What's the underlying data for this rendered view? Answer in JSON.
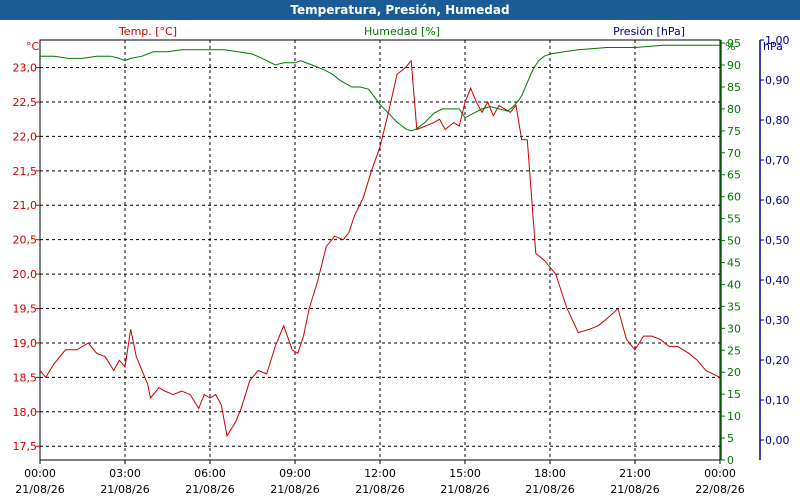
{
  "window": {
    "title": "Temperatura, Presión, Humedad"
  },
  "colors": {
    "temp": "#cc0000",
    "humidity": "#007700",
    "pressure": "#00008b",
    "titlebar": "#1c5c96",
    "text": "#000000"
  },
  "chart_data": {
    "type": "line",
    "title": "Temperatura, Presión, Humedad",
    "grid": true,
    "x_axis": {
      "ticks": [
        {
          "time": "00:00",
          "date": "21/08/26"
        },
        {
          "time": "03:00",
          "date": "21/08/26"
        },
        {
          "time": "06:00",
          "date": "21/08/26"
        },
        {
          "time": "09:00",
          "date": "21/08/26"
        },
        {
          "time": "12:00",
          "date": "21/08/26"
        },
        {
          "time": "15:00",
          "date": "21/08/26"
        },
        {
          "time": "18:00",
          "date": "21/08/26"
        },
        {
          "time": "21:00",
          "date": "21/08/26"
        },
        {
          "time": "00:00",
          "date": "22/08/26"
        }
      ],
      "range_hours": [
        0,
        24
      ]
    },
    "left_axis": {
      "unit": "°C",
      "range": [
        17.3,
        23.4
      ],
      "ticks": [
        "17,5",
        "18,0",
        "18,5",
        "19,0",
        "19,5",
        "20,0",
        "20,5",
        "21,0",
        "21,5",
        "22,0",
        "22,5",
        "23,0"
      ]
    },
    "right_axis_humidity": {
      "unit": "%",
      "range": [
        0,
        95.7
      ],
      "ticks": [
        "0",
        "5",
        "10",
        "15",
        "20",
        "25",
        "30",
        "35",
        "40",
        "45",
        "50",
        "55",
        "60",
        "65",
        "70",
        "75",
        "80",
        "85",
        "90",
        "95"
      ]
    },
    "right_axis_pressure": {
      "unit": "hPa",
      "range": [
        -0.05,
        1.0
      ],
      "ticks": [
        "0,00",
        "0,10",
        "0,20",
        "0,30",
        "0,40",
        "0,50",
        "0,60",
        "0,70",
        "0,80",
        "0,90",
        "1,00"
      ]
    },
    "series": [
      {
        "name": "Temp. [°C]",
        "axis": "temp",
        "x": [
          0,
          0.2,
          0.5,
          0.9,
          1.3,
          1.7,
          2.0,
          2.3,
          2.6,
          2.8,
          3.0,
          3.2,
          3.4,
          3.6,
          3.8,
          3.9,
          4.2,
          4.4,
          4.7,
          5.0,
          5.3,
          5.6,
          5.8,
          6.0,
          6.2,
          6.4,
          6.6,
          6.9,
          7.1,
          7.4,
          7.7,
          8.0,
          8.3,
          8.6,
          8.9,
          9.1,
          9.3,
          9.5,
          9.8,
          10.1,
          10.4,
          10.7,
          10.9,
          11.1,
          11.4,
          11.7,
          12.0,
          12.3,
          12.6,
          12.9,
          13.1,
          13.3,
          13.6,
          13.9,
          14.1,
          14.3,
          14.6,
          14.8,
          15.0,
          15.2,
          15.4,
          15.6,
          15.8,
          16.0,
          16.2,
          16.4,
          16.6,
          16.8,
          17.0,
          17.2,
          17.5,
          17.8,
          18.2,
          18.6,
          19.0,
          19.4,
          19.7,
          20.0,
          20.4,
          20.7,
          21.0,
          21.3,
          21.6,
          21.9,
          22.2,
          22.5,
          22.9,
          23.2,
          23.5,
          24.0
        ],
        "y": [
          18.6,
          18.5,
          18.7,
          18.9,
          18.9,
          19.0,
          18.85,
          18.8,
          18.6,
          18.75,
          18.65,
          19.2,
          18.8,
          18.6,
          18.4,
          18.2,
          18.35,
          18.3,
          18.25,
          18.3,
          18.25,
          18.05,
          18.25,
          18.2,
          18.25,
          18.1,
          17.65,
          17.85,
          18.05,
          18.45,
          18.6,
          18.55,
          18.95,
          19.25,
          18.9,
          18.85,
          19.1,
          19.5,
          19.9,
          20.4,
          20.55,
          20.5,
          20.6,
          20.85,
          21.1,
          21.5,
          21.85,
          22.35,
          22.9,
          23.0,
          23.1,
          22.1,
          22.15,
          22.2,
          22.25,
          22.1,
          22.2,
          22.15,
          22.5,
          22.7,
          22.5,
          22.35,
          22.5,
          22.3,
          22.45,
          22.4,
          22.35,
          22.45,
          21.95,
          21.95,
          20.3,
          20.2,
          20.0,
          19.5,
          19.15,
          19.2,
          19.25,
          19.35,
          19.5,
          19.05,
          18.9,
          19.1,
          19.1,
          19.05,
          18.95,
          18.95,
          18.85,
          18.75,
          18.6,
          18.5
        ]
      },
      {
        "name": "Humedad [%]",
        "axis": "humidity",
        "x": [
          0,
          0.5,
          1.0,
          1.5,
          2.0,
          2.5,
          2.8,
          3.0,
          3.2,
          3.6,
          4.0,
          4.5,
          5.0,
          6.0,
          6.5,
          7.0,
          7.5,
          8.0,
          8.3,
          8.6,
          9.0,
          9.2,
          9.6,
          10.0,
          10.3,
          10.6,
          11.0,
          11.3,
          11.6,
          12.0,
          12.3,
          12.6,
          12.9,
          13.1,
          13.3,
          13.6,
          13.9,
          14.2,
          14.5,
          14.8,
          15.0,
          15.3,
          15.6,
          15.9,
          16.2,
          16.5,
          16.7,
          16.9,
          17.0,
          17.2,
          17.4,
          17.6,
          17.8,
          18.0,
          18.5,
          19.0,
          20.0,
          21.0,
          22.0,
          23.0,
          24.0
        ],
        "y": [
          92,
          92,
          91.5,
          91.5,
          92,
          92,
          91.5,
          91,
          91.5,
          92,
          93,
          93,
          93.5,
          93.5,
          93.5,
          93,
          92.5,
          91,
          90,
          90.5,
          90.5,
          91,
          90,
          89,
          88,
          86.5,
          85,
          85,
          84.5,
          81,
          79,
          77,
          75.5,
          75,
          75.5,
          77,
          79,
          80,
          80,
          80,
          78,
          79,
          80,
          80.5,
          80,
          79.5,
          80.5,
          82,
          83,
          86,
          89,
          91,
          92,
          92.5,
          93,
          93.5,
          94,
          94,
          94.5,
          94.5,
          94.5
        ]
      },
      {
        "name": "Presión [hPa]",
        "axis": "pressure",
        "x": [],
        "y": []
      }
    ]
  }
}
